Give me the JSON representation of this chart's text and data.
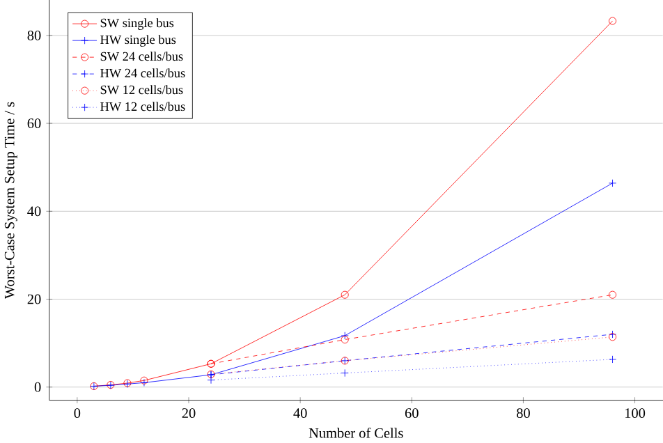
{
  "chart_data": {
    "type": "line",
    "xlabel": "Number of Cells",
    "ylabel": "Worst-Case System Setup Time / s",
    "xlim": [
      -5,
      105
    ],
    "ylim": [
      -3,
      88
    ],
    "xticks": [
      0,
      20,
      40,
      60,
      80,
      100
    ],
    "yticks": [
      0,
      20,
      40,
      60,
      80
    ],
    "grid": "y",
    "legend": "top left",
    "series": [
      {
        "name": "SW single bus",
        "color": "#ff0000",
        "marker": "circle",
        "line_style": "solid",
        "x": [
          3,
          6,
          9,
          12,
          24,
          48,
          96
        ],
        "values": [
          0.2,
          0.5,
          0.9,
          1.5,
          5.3,
          21,
          83.3
        ]
      },
      {
        "name": "HW single bus",
        "color": "#0000ff",
        "marker": "cross",
        "line_style": "solid",
        "x": [
          3,
          6,
          9,
          12,
          24,
          48,
          96
        ],
        "values": [
          0.2,
          0.4,
          0.7,
          1.0,
          2.8,
          11.7,
          46.4
        ]
      },
      {
        "name": "SW 24 cells/bus",
        "color": "#ff0000",
        "marker": "circle",
        "line_style": "dashed",
        "x": [
          24,
          48,
          96
        ],
        "values": [
          5.3,
          10.8,
          21
        ]
      },
      {
        "name": "HW 24 cells/bus",
        "color": "#0000ff",
        "marker": "cross",
        "line_style": "dashed",
        "x": [
          24,
          48,
          96
        ],
        "values": [
          2.8,
          6,
          12
        ]
      },
      {
        "name": "SW 12 cells/bus",
        "color": "#ff0000",
        "marker": "circle",
        "line_style": "dotted",
        "x": [
          24,
          48,
          96
        ],
        "values": [
          2.9,
          6,
          11.4
        ]
      },
      {
        "name": "HW 12 cells/bus",
        "color": "#0000ff",
        "marker": "cross",
        "line_style": "dotted",
        "x": [
          24,
          48,
          96
        ],
        "values": [
          1.6,
          3.2,
          6.3
        ]
      }
    ]
  }
}
